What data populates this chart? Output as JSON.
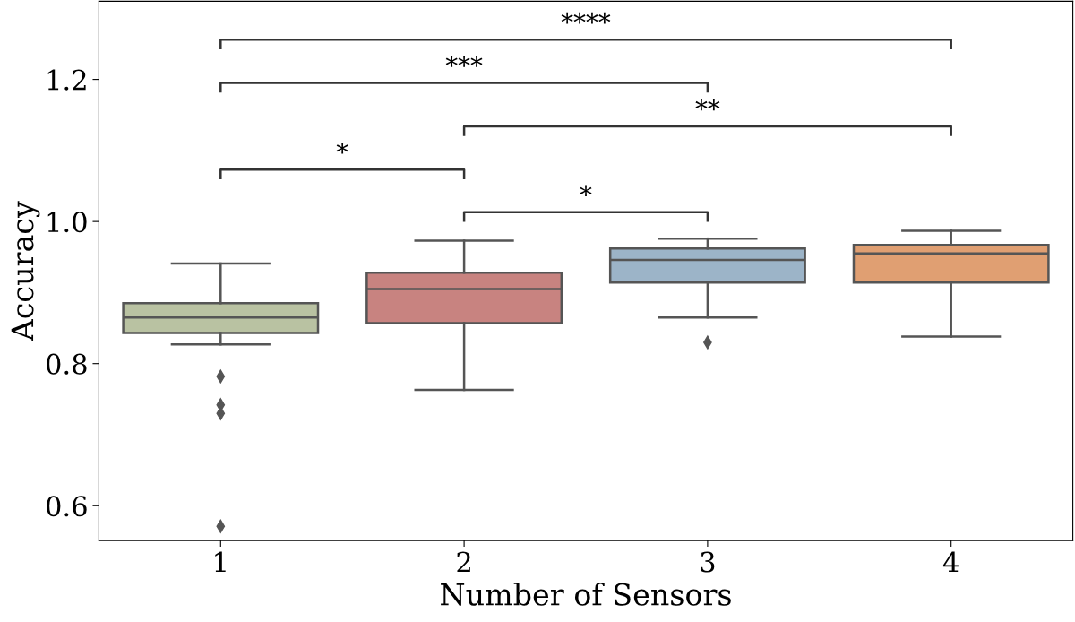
{
  "chart_data": {
    "type": "box",
    "xlabel": "Number of Sensors",
    "ylabel": "Accuracy",
    "categories": [
      "1",
      "2",
      "3",
      "4"
    ],
    "colors": [
      "#b9c2a2",
      "#c88380",
      "#9cb4c8",
      "#e09f72"
    ],
    "ylim": [
      0.551,
      1.31
    ],
    "yticks": [
      0.6,
      0.8,
      {
        "value": 1,
        "label": "1.0"
      },
      1.2
    ],
    "grid": false,
    "marker": "diamond",
    "boxes": [
      {
        "low": 0.827,
        "q1": 0.843,
        "median": 0.865,
        "q3": 0.885,
        "high": 0.941,
        "outliers": [
          0.782,
          0.742,
          0.73,
          0.571
        ]
      },
      {
        "low": 0.763,
        "q1": 0.857,
        "median": 0.905,
        "q3": 0.928,
        "high": 0.973
      },
      {
        "low": 0.865,
        "q1": 0.914,
        "median": 0.946,
        "q3": 0.962,
        "high": 0.976,
        "outliers": [
          0.83
        ]
      },
      {
        "low": 0.838,
        "q1": 0.914,
        "median": 0.955,
        "q3": 0.967,
        "high": 0.987
      }
    ],
    "annotations": [
      "*",
      "*",
      "**",
      "***",
      "****"
    ]
  }
}
